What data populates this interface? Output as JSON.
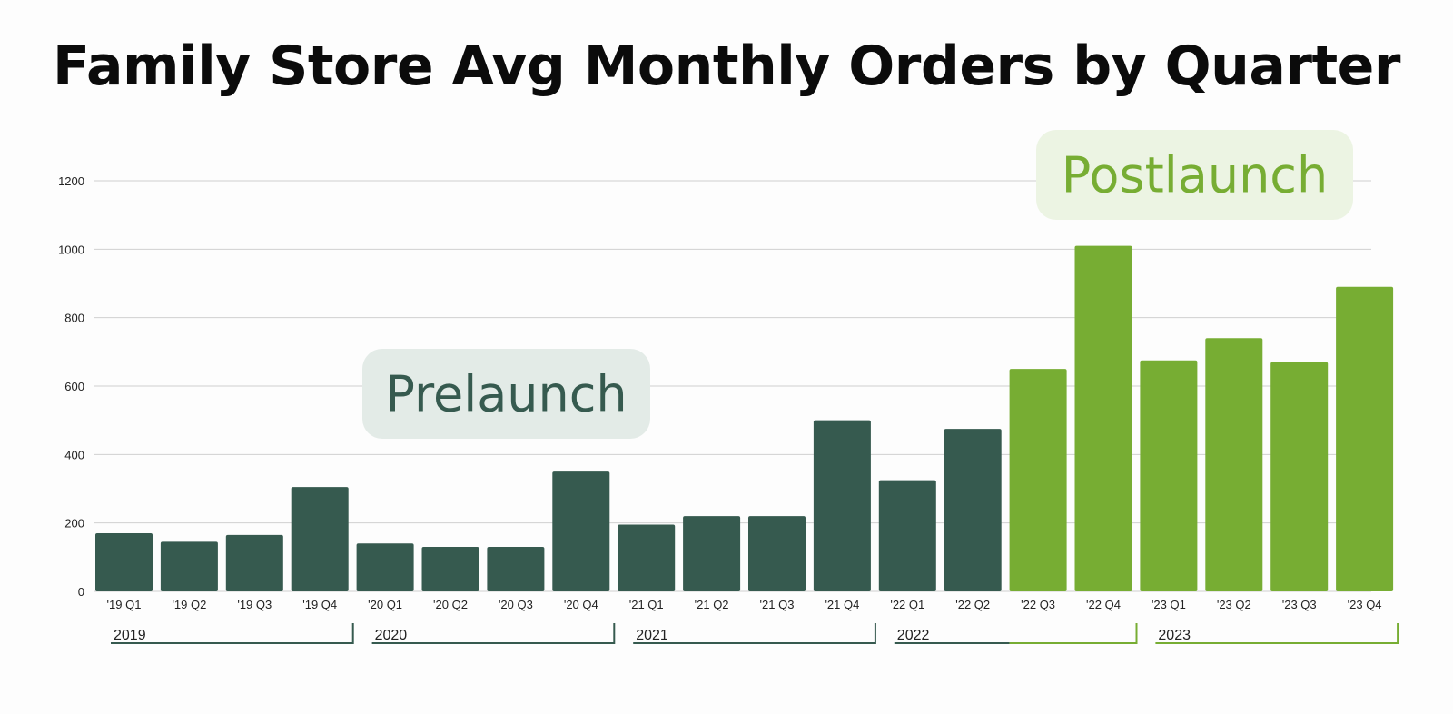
{
  "colors": {
    "prelaunch": "#365a4f",
    "postlaunch": "#77ad33",
    "prelaunch_box": "#e3ebe7",
    "postlaunch_box": "#ecf4e3",
    "grid": "#d0d0d0"
  },
  "chart_data": {
    "type": "bar",
    "title": "Family Store Avg Monthly Orders by Quarter",
    "categories": [
      "'19 Q1",
      "'19 Q2",
      "'19 Q3",
      "'19 Q4",
      "'20 Q1",
      "'20 Q2",
      "'20 Q3",
      "'20 Q4",
      "'21 Q1",
      "'21 Q2",
      "'21 Q3",
      "'21 Q4",
      "'22 Q1",
      "'22 Q2",
      "'22 Q3",
      "'22 Q4",
      "'23 Q1",
      "'23 Q2",
      "'23 Q3",
      "'23 Q4"
    ],
    "values": [
      170,
      145,
      165,
      305,
      140,
      130,
      130,
      350,
      195,
      220,
      220,
      500,
      325,
      475,
      650,
      1010,
      675,
      740,
      670,
      890
    ],
    "phase": [
      "pre",
      "pre",
      "pre",
      "pre",
      "pre",
      "pre",
      "pre",
      "pre",
      "pre",
      "pre",
      "pre",
      "pre",
      "pre",
      "pre",
      "post",
      "post",
      "post",
      "post",
      "post",
      "post"
    ],
    "ylim": [
      0,
      1200
    ],
    "yticks": [
      0,
      200,
      400,
      600,
      800,
      1000,
      1200
    ],
    "grid": true,
    "year_groups": [
      {
        "label": "2019",
        "start": 0,
        "end": 3
      },
      {
        "label": "2020",
        "start": 4,
        "end": 7
      },
      {
        "label": "2021",
        "start": 8,
        "end": 11
      },
      {
        "label": "2022",
        "start": 12,
        "end": 15
      },
      {
        "label": "2023",
        "start": 16,
        "end": 19
      }
    ],
    "annotations": [
      {
        "text": "Prelaunch",
        "phase": "pre"
      },
      {
        "text": "Postlaunch",
        "phase": "post"
      }
    ]
  }
}
